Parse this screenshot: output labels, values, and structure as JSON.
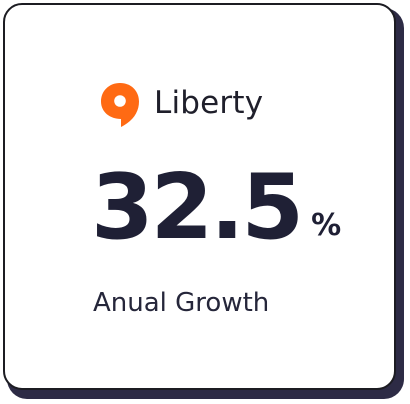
{
  "brand": {
    "name": "Liberty",
    "icon": "location-pin-speech-icon",
    "accent_color": "#ff6a13"
  },
  "metric": {
    "value": "32.5",
    "unit": "%",
    "label": "Anual Growth"
  },
  "colors": {
    "text_dark": "#1f2035",
    "card_border": "#1c1c22",
    "card_shadow": "#2d2b45"
  }
}
